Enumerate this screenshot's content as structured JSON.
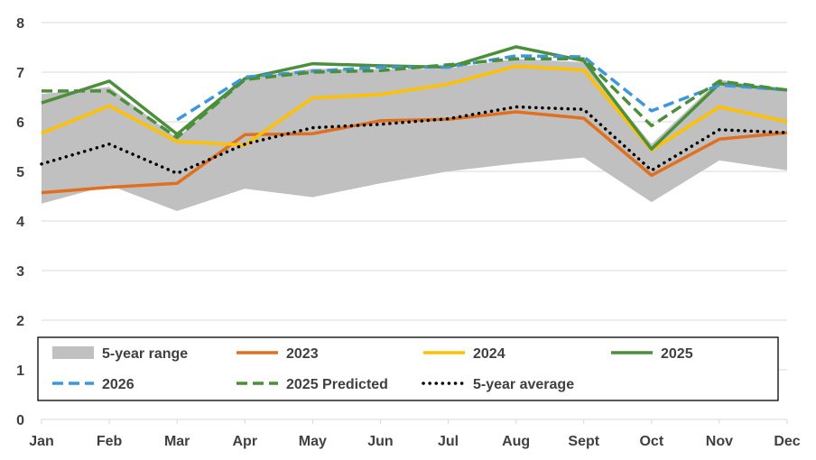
{
  "chart_data": {
    "type": "line",
    "title": "",
    "xlabel": "",
    "ylabel": "",
    "categories": [
      "Jan",
      "Feb",
      "Mar",
      "Apr",
      "May",
      "Jun",
      "Jul",
      "Aug",
      "Sept",
      "Oct",
      "Nov",
      "Dec"
    ],
    "ylim": [
      0,
      8
    ],
    "yticks": [
      "0",
      "1",
      "2",
      "3",
      "4",
      "5",
      "6",
      "7",
      "8"
    ],
    "grid": "horizontal",
    "legend_position": "bottom-inside",
    "range": {
      "name": "5-year range",
      "color": "#c0c0c0",
      "low": [
        4.35,
        4.72,
        4.2,
        4.65,
        4.48,
        4.76,
        5.0,
        5.16,
        5.28,
        4.38,
        5.22,
        5.02
      ],
      "high": [
        6.56,
        6.7,
        5.67,
        6.88,
        7.07,
        7.05,
        7.07,
        7.27,
        7.2,
        5.55,
        6.85,
        6.62
      ]
    },
    "series": [
      {
        "name": "2023",
        "color": "#e07020",
        "dash": "solid",
        "values": [
          4.57,
          4.68,
          4.76,
          5.74,
          5.76,
          6.02,
          6.05,
          6.2,
          6.07,
          4.92,
          5.65,
          5.78
        ]
      },
      {
        "name": "2024",
        "color": "#ffc000",
        "dash": "solid",
        "values": [
          5.77,
          6.32,
          5.6,
          5.53,
          6.48,
          6.55,
          6.76,
          7.12,
          7.04,
          5.43,
          6.3,
          6.0
        ]
      },
      {
        "name": "2025",
        "color": "#4b8f3b",
        "dash": "solid",
        "values": [
          6.38,
          6.82,
          5.75,
          6.87,
          7.17,
          7.13,
          7.1,
          7.51,
          7.23,
          5.45,
          6.77,
          6.64
        ]
      },
      {
        "name": "2026",
        "color": "#3d97dd",
        "dash": "dashed",
        "values": [
          null,
          null,
          6.04,
          6.9,
          7.02,
          7.1,
          7.1,
          7.33,
          7.31,
          6.22,
          6.74,
          6.64
        ]
      },
      {
        "name": "2025 Predicted",
        "color": "#4b8f3b",
        "dash": "dashed",
        "values": [
          6.62,
          6.62,
          5.68,
          6.85,
          7.0,
          7.03,
          7.15,
          7.27,
          7.27,
          5.92,
          6.82,
          6.64
        ]
      },
      {
        "name": "5-year average",
        "color": "#000000",
        "dash": "dotted",
        "values": [
          5.15,
          5.55,
          4.96,
          5.55,
          5.88,
          5.95,
          6.06,
          6.3,
          6.25,
          5.02,
          5.84,
          5.78
        ]
      }
    ],
    "legend": [
      {
        "name": "5-year range",
        "style": "band",
        "color": "#c0c0c0"
      },
      {
        "name": "2023",
        "style": "solid",
        "color": "#e07020"
      },
      {
        "name": "2024",
        "style": "solid",
        "color": "#ffc000"
      },
      {
        "name": "2025",
        "style": "solid",
        "color": "#4b8f3b"
      },
      {
        "name": "2026",
        "style": "dashed",
        "color": "#3d97dd"
      },
      {
        "name": "2025 Predicted",
        "style": "dashed",
        "color": "#4b8f3b"
      },
      {
        "name": "5-year average",
        "style": "dotted",
        "color": "#000000"
      }
    ]
  }
}
